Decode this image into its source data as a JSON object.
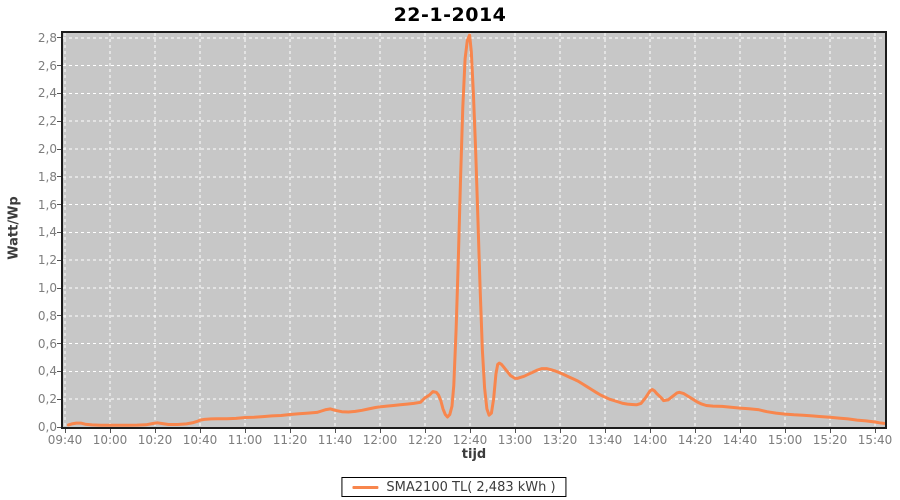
{
  "chart": {
    "title": "22-1-2014",
    "x_label": "tijd",
    "y_label": "Watt/Wp"
  },
  "legend": {
    "label": "SMA2100 TL( 2,483 kWh )",
    "swatch_color": "#F8864D"
  },
  "chart_data": {
    "type": "line",
    "title": "22-1-2014",
    "xlabel": "tijd",
    "ylabel": "Watt/Wp",
    "x_ticks": [
      "09:40",
      "10:00",
      "10:20",
      "10:40",
      "11:00",
      "11:20",
      "11:40",
      "12:00",
      "12:20",
      "12:40",
      "13:00",
      "13:20",
      "13:40",
      "14:00",
      "14:20",
      "14:40",
      "15:00",
      "15:20",
      "15:40"
    ],
    "x_tick_interval_minutes": 20,
    "y_ticks": [
      "0,0",
      "0,2",
      "0,4",
      "0,6",
      "0,8",
      "1,0",
      "1,2",
      "1,4",
      "1,6",
      "1,8",
      "2,0",
      "2,2",
      "2,4",
      "2,6",
      "2,8"
    ],
    "y_tick_step": 0.2,
    "ylim": [
      0.0,
      2.8
    ],
    "grid": "white dashed lines on gray plot background",
    "legend_position": "bottom-center",
    "colors": {
      "plot_background": "#C7C7C7",
      "gridline": "#FFFFFF",
      "line": "#F8864D"
    },
    "series": [
      {
        "name": "SMA2100 TL( 2,483 kWh )",
        "color": "#F8864D",
        "x_unit": "minutes after 09:40",
        "y_unit": "Watt/Wp",
        "points": [
          [
            1.5,
            0.015
          ],
          [
            3,
            0.022
          ],
          [
            5,
            0.028
          ],
          [
            7,
            0.028
          ],
          [
            9,
            0.02
          ],
          [
            12,
            0.015
          ],
          [
            16,
            0.013
          ],
          [
            20,
            0.013
          ],
          [
            24,
            0.013
          ],
          [
            28,
            0.013
          ],
          [
            32,
            0.014
          ],
          [
            36,
            0.016
          ],
          [
            39,
            0.025
          ],
          [
            41,
            0.03
          ],
          [
            43,
            0.025
          ],
          [
            46,
            0.018
          ],
          [
            50,
            0.018
          ],
          [
            54,
            0.022
          ],
          [
            57,
            0.032
          ],
          [
            59,
            0.042
          ],
          [
            60,
            0.05
          ],
          [
            62,
            0.055
          ],
          [
            65,
            0.058
          ],
          [
            68,
            0.06
          ],
          [
            72,
            0.06
          ],
          [
            76,
            0.062
          ],
          [
            80,
            0.068
          ],
          [
            84,
            0.07
          ],
          [
            88,
            0.075
          ],
          [
            92,
            0.08
          ],
          [
            96,
            0.083
          ],
          [
            100,
            0.09
          ],
          [
            104,
            0.095
          ],
          [
            108,
            0.1
          ],
          [
            112,
            0.105
          ],
          [
            114,
            0.115
          ],
          [
            116,
            0.125
          ],
          [
            118,
            0.13
          ],
          [
            120,
            0.12
          ],
          [
            123,
            0.11
          ],
          [
            126,
            0.108
          ],
          [
            129,
            0.112
          ],
          [
            132,
            0.12
          ],
          [
            135,
            0.13
          ],
          [
            138,
            0.14
          ],
          [
            140,
            0.145
          ],
          [
            143,
            0.15
          ],
          [
            146,
            0.155
          ],
          [
            149,
            0.16
          ],
          [
            152,
            0.165
          ],
          [
            155,
            0.17
          ],
          [
            158,
            0.178
          ],
          [
            160,
            0.21
          ],
          [
            162,
            0.23
          ],
          [
            163.5,
            0.255
          ],
          [
            165,
            0.25
          ],
          [
            166,
            0.23
          ],
          [
            167,
            0.19
          ],
          [
            168,
            0.13
          ],
          [
            169,
            0.09
          ],
          [
            170,
            0.072
          ],
          [
            171,
            0.09
          ],
          [
            172,
            0.15
          ],
          [
            172.8,
            0.3
          ],
          [
            173.8,
            0.7
          ],
          [
            174.8,
            1.2
          ],
          [
            175.8,
            1.8
          ],
          [
            176.8,
            2.3
          ],
          [
            177.8,
            2.65
          ],
          [
            178.8,
            2.78
          ],
          [
            179.8,
            2.82
          ],
          [
            180.6,
            2.7
          ],
          [
            181.5,
            2.4
          ],
          [
            182.5,
            2.0
          ],
          [
            183.5,
            1.5
          ],
          [
            184.5,
            1.0
          ],
          [
            185.5,
            0.55
          ],
          [
            186.5,
            0.28
          ],
          [
            187.5,
            0.13
          ],
          [
            188.5,
            0.085
          ],
          [
            189.5,
            0.1
          ],
          [
            190.5,
            0.2
          ],
          [
            191.5,
            0.38
          ],
          [
            192.3,
            0.45
          ],
          [
            193,
            0.46
          ],
          [
            194,
            0.45
          ],
          [
            195,
            0.43
          ],
          [
            196,
            0.41
          ],
          [
            197,
            0.39
          ],
          [
            198,
            0.37
          ],
          [
            199,
            0.36
          ],
          [
            200,
            0.35
          ],
          [
            201,
            0.35
          ],
          [
            202,
            0.355
          ],
          [
            204,
            0.365
          ],
          [
            206,
            0.38
          ],
          [
            208,
            0.395
          ],
          [
            210,
            0.41
          ],
          [
            212,
            0.42
          ],
          [
            214,
            0.42
          ],
          [
            216,
            0.412
          ],
          [
            218,
            0.402
          ],
          [
            220,
            0.39
          ],
          [
            222,
            0.375
          ],
          [
            224,
            0.36
          ],
          [
            226,
            0.345
          ],
          [
            228,
            0.33
          ],
          [
            230,
            0.31
          ],
          [
            232,
            0.29
          ],
          [
            234,
            0.27
          ],
          [
            236,
            0.25
          ],
          [
            238,
            0.23
          ],
          [
            240,
            0.215
          ],
          [
            242,
            0.2
          ],
          [
            244,
            0.19
          ],
          [
            246,
            0.18
          ],
          [
            248,
            0.17
          ],
          [
            250,
            0.165
          ],
          [
            252,
            0.162
          ],
          [
            254,
            0.16
          ],
          [
            256,
            0.17
          ],
          [
            258,
            0.21
          ],
          [
            260,
            0.26
          ],
          [
            261,
            0.27
          ],
          [
            262,
            0.26
          ],
          [
            263,
            0.24
          ],
          [
            265,
            0.21
          ],
          [
            266,
            0.19
          ],
          [
            268,
            0.195
          ],
          [
            270,
            0.22
          ],
          [
            272,
            0.245
          ],
          [
            273,
            0.25
          ],
          [
            275,
            0.24
          ],
          [
            277,
            0.22
          ],
          [
            279,
            0.2
          ],
          [
            281,
            0.18
          ],
          [
            283,
            0.165
          ],
          [
            285,
            0.155
          ],
          [
            288,
            0.15
          ],
          [
            292,
            0.148
          ],
          [
            296,
            0.142
          ],
          [
            300,
            0.136
          ],
          [
            304,
            0.132
          ],
          [
            308,
            0.125
          ],
          [
            312,
            0.11
          ],
          [
            316,
            0.1
          ],
          [
            320,
            0.093
          ],
          [
            324,
            0.088
          ],
          [
            328,
            0.084
          ],
          [
            332,
            0.08
          ],
          [
            336,
            0.075
          ],
          [
            340,
            0.07
          ],
          [
            344,
            0.064
          ],
          [
            348,
            0.058
          ],
          [
            352,
            0.05
          ],
          [
            356,
            0.044
          ],
          [
            360,
            0.036
          ],
          [
            362,
            0.03
          ],
          [
            364,
            0.026
          ]
        ]
      }
    ]
  }
}
